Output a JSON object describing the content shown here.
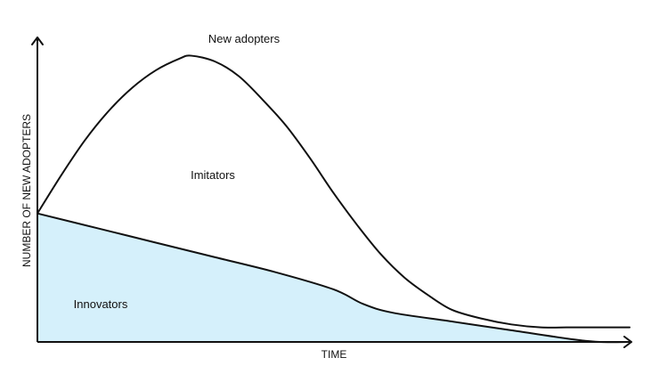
{
  "chart_data": {
    "type": "area",
    "x_label": "TIME",
    "y_label": "NUMBER OF NEW ADOPTERS",
    "x_range": [
      0,
      100
    ],
    "y_range": [
      0,
      100
    ],
    "grid": false,
    "legend": false,
    "annotations": [
      {
        "text": "New adopters",
        "series": "new_adopters"
      },
      {
        "text": "Imitators",
        "region": "between"
      },
      {
        "text": "Innovators",
        "region": "lower"
      }
    ],
    "series": [
      {
        "key": "new_adopters",
        "mark": "line",
        "points": [
          [
            0,
            44
          ],
          [
            4,
            57
          ],
          [
            8,
            69
          ],
          [
            12,
            79
          ],
          [
            16,
            87
          ],
          [
            20,
            93
          ],
          [
            24,
            97
          ],
          [
            26,
            98
          ],
          [
            30,
            96
          ],
          [
            34,
            91
          ],
          [
            38,
            83
          ],
          [
            42,
            74
          ],
          [
            46,
            63
          ],
          [
            50,
            51
          ],
          [
            54,
            40
          ],
          [
            58,
            30
          ],
          [
            62,
            22
          ],
          [
            66,
            16
          ],
          [
            70,
            11
          ],
          [
            75,
            8
          ],
          [
            80,
            6
          ],
          [
            85,
            5
          ],
          [
            90,
            5
          ],
          [
            95,
            5
          ],
          [
            100,
            5
          ]
        ]
      },
      {
        "key": "innovators",
        "mark": "area",
        "fill": "#d5f0fb",
        "points": [
          [
            0,
            44
          ],
          [
            10,
            39
          ],
          [
            20,
            34
          ],
          [
            30,
            29
          ],
          [
            40,
            24
          ],
          [
            50,
            18
          ],
          [
            55,
            13
          ],
          [
            60,
            10
          ],
          [
            70,
            7
          ],
          [
            80,
            4
          ],
          [
            90,
            1
          ],
          [
            95,
            0
          ],
          [
            100,
            0
          ]
        ]
      }
    ]
  }
}
